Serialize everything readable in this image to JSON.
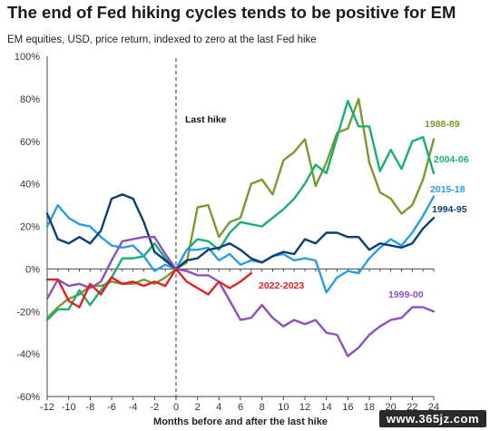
{
  "header": {
    "title": "The end of Fed hiking cycles tends to be positive for EM",
    "subtitle": "EM equities, USD, price return, indexed to zero at the last Fed hike"
  },
  "watermark": "www.365jz.com",
  "chart_data": {
    "type": "line",
    "title": "The end of Fed hiking cycles tends to be positive for EM",
    "subtitle": "EM equities, USD, price return, indexed to zero at the last Fed hike",
    "xlabel": "Months before and after the last hike",
    "ylabel": "",
    "xlim": [
      -12,
      24
    ],
    "ylim": [
      -60,
      100
    ],
    "x_ticks": [
      "-12",
      "-10",
      "-8",
      "-6",
      "-4",
      "-2",
      "0",
      "2",
      "4",
      "6",
      "8",
      "10",
      "12",
      "14",
      "16",
      "18",
      "20",
      "22",
      "24"
    ],
    "y_ticks": [
      "100%",
      "80%",
      "60%",
      "40%",
      "20%",
      "0%",
      "-20%",
      "-40%",
      "-60%"
    ],
    "y_tick_values": [
      100,
      80,
      60,
      40,
      20,
      0,
      -20,
      -40,
      -60
    ],
    "grid": false,
    "annotation": {
      "label": "Last hike",
      "x": 0
    },
    "series": [
      {
        "name": "1988-89",
        "color": "#7a9a2e",
        "x": [
          -12,
          -11,
          -10,
          -9,
          -8,
          -7,
          -6,
          -5,
          -4,
          -3,
          -2,
          -1,
          0,
          1,
          2,
          3,
          4,
          5,
          6,
          7,
          8,
          9,
          10,
          11,
          12,
          13,
          14,
          15,
          16,
          17,
          18,
          19,
          20,
          21,
          22,
          23,
          24
        ],
        "y": [
          -23,
          -18,
          -14,
          -12,
          -8,
          -8,
          -6,
          -7,
          -7,
          -5,
          -7,
          -4,
          0,
          3,
          29,
          30,
          15,
          22,
          24,
          40,
          42,
          35,
          51,
          55,
          61,
          39,
          50,
          64,
          66,
          80,
          50,
          36,
          33,
          26,
          30,
          42,
          61
        ]
      },
      {
        "name": "2004-06",
        "color": "#1aae74",
        "x": [
          -12,
          -11,
          -10,
          -9,
          -8,
          -7,
          -6,
          -5,
          -4,
          -3,
          -2,
          -1,
          0,
          1,
          2,
          3,
          4,
          5,
          6,
          7,
          8,
          9,
          10,
          11,
          12,
          13,
          14,
          15,
          16,
          17,
          18,
          19,
          20,
          21,
          22,
          23,
          24
        ],
        "y": [
          -24,
          -19,
          -19,
          -10,
          -17,
          -10,
          -4,
          5,
          5,
          6,
          12,
          5,
          0,
          9,
          14,
          13,
          9,
          17,
          22,
          21,
          20,
          24,
          28,
          33,
          40,
          49,
          45,
          62,
          79,
          67,
          67,
          46,
          56,
          47,
          60,
          62,
          45
        ]
      },
      {
        "name": "2015-18",
        "color": "#2a9be6",
        "x": [
          -12,
          -11,
          -10,
          -9,
          -8,
          -7,
          -6,
          -5,
          -4,
          -3,
          -2,
          -1,
          0,
          1,
          2,
          3,
          4,
          5,
          6,
          7,
          8,
          9,
          10,
          11,
          12,
          13,
          14,
          15,
          16,
          17,
          18,
          19,
          20,
          21,
          22,
          23,
          24
        ],
        "y": [
          20,
          30,
          24,
          21,
          20,
          15,
          11,
          10,
          11,
          6,
          -1,
          2,
          0,
          9,
          9,
          10,
          4,
          7,
          2,
          4,
          3,
          6,
          7,
          4,
          5,
          4,
          -11,
          -4,
          -1,
          -2,
          5,
          10,
          14,
          11,
          17,
          25,
          34
        ]
      },
      {
        "name": "1994-95",
        "color": "#0d3f73",
        "x": [
          -12,
          -11,
          -10,
          -9,
          -8,
          -7,
          -6,
          -5,
          -4,
          -3,
          -2,
          -1,
          0,
          1,
          2,
          3,
          4,
          5,
          6,
          7,
          8,
          9,
          10,
          11,
          12,
          13,
          14,
          15,
          16,
          17,
          18,
          19,
          20,
          21,
          22,
          23,
          24
        ],
        "y": [
          26,
          14,
          12,
          15,
          12,
          18,
          33,
          35,
          33,
          22,
          8,
          4,
          0,
          4,
          5,
          9,
          10,
          12,
          9,
          5,
          3,
          6,
          8,
          7,
          14,
          12,
          17,
          17,
          15,
          15,
          9,
          12,
          11,
          10,
          12,
          19,
          24
        ]
      },
      {
        "name": "1999-00",
        "color": "#8e4fc4",
        "x": [
          -12,
          -11,
          -10,
          -9,
          -8,
          -7,
          -6,
          -5,
          -4,
          -3,
          -2,
          -1,
          0,
          1,
          2,
          3,
          4,
          5,
          6,
          7,
          8,
          9,
          10,
          11,
          12,
          13,
          14,
          15,
          16,
          17,
          18,
          19,
          20,
          21,
          22,
          23,
          24
        ],
        "y": [
          -14,
          -5,
          -8,
          -7,
          -9,
          -6,
          4,
          13,
          14,
          15,
          15,
          7,
          0,
          -1,
          -3,
          -3,
          -6,
          -15,
          -24,
          -23,
          -17,
          -23,
          -27,
          -24,
          -26,
          -24,
          -30,
          -31,
          -41,
          -37,
          -31,
          -27,
          -24,
          -23,
          -18,
          -18,
          -20
        ]
      },
      {
        "name": "2022-2023",
        "color": "#e02020",
        "x": [
          -12,
          -11,
          -10,
          -9,
          -8,
          -7,
          -6,
          -5,
          -4,
          -3,
          -2,
          -1,
          0,
          1,
          2,
          3,
          4,
          5,
          6,
          7
        ],
        "y": [
          -5,
          -5,
          -15,
          -18,
          -7,
          -12,
          -4,
          -7,
          -6,
          -8,
          -6,
          -8,
          0,
          -6,
          -9,
          -12,
          -6,
          -9,
          -6,
          -2
        ]
      }
    ]
  }
}
